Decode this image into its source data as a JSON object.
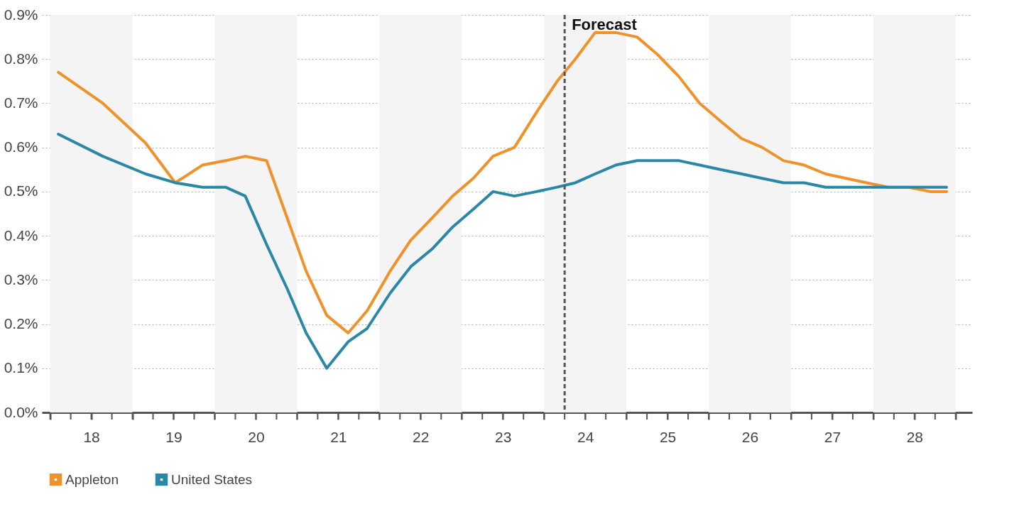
{
  "chart_data": {
    "type": "line",
    "xlim": [
      17.4,
      28.7
    ],
    "xticks": [
      {
        "value": 17.5,
        "label": null
      },
      {
        "value": 17.75,
        "label": null
      },
      18,
      {
        "value": 18.25,
        "label": null
      },
      {
        "value": 18.5,
        "label": null
      },
      {
        "value": 18.75,
        "label": null
      },
      19,
      {
        "value": 19.25,
        "label": null
      },
      {
        "value": 19.5,
        "label": null
      },
      {
        "value": 19.75,
        "label": null
      },
      20,
      {
        "value": 20.25,
        "label": null
      },
      {
        "value": 20.5,
        "label": null
      },
      {
        "value": 20.75,
        "label": null
      },
      21,
      {
        "value": 21.25,
        "label": null
      },
      {
        "value": 21.5,
        "label": null
      },
      {
        "value": 21.75,
        "label": null
      },
      22,
      {
        "value": 22.25,
        "label": null
      },
      {
        "value": 22.5,
        "label": null
      },
      {
        "value": 22.75,
        "label": null
      },
      23,
      {
        "value": 23.25,
        "label": null
      },
      {
        "value": 23.5,
        "label": null
      },
      {
        "value": 23.75,
        "label": null
      },
      24,
      {
        "value": 24.25,
        "label": null
      },
      {
        "value": 24.5,
        "label": null
      },
      {
        "value": 24.75,
        "label": null
      },
      25,
      {
        "value": 25.25,
        "label": null
      },
      {
        "value": 25.5,
        "label": null
      },
      {
        "value": 25.75,
        "label": null
      },
      26,
      {
        "value": 26.25,
        "label": null
      },
      {
        "value": 26.5,
        "label": null
      },
      {
        "value": 26.75,
        "label": null
      },
      27,
      {
        "value": 27.25,
        "label": null
      },
      {
        "value": 27.5,
        "label": null
      },
      {
        "value": 27.75,
        "label": null
      },
      28,
      {
        "value": 28.25,
        "label": null
      },
      {
        "value": 28.5,
        "label": null
      }
    ],
    "ylim": [
      0,
      0.9
    ],
    "yticks": [
      {
        "value": 0,
        "label": "0.0%"
      },
      {
        "value": 0.1,
        "label": "0.1%"
      },
      {
        "value": 0.2,
        "label": "0.2%"
      },
      {
        "value": 0.3,
        "label": "0.3%"
      },
      {
        "value": 0.4,
        "label": "0.4%"
      },
      {
        "value": 0.5,
        "label": "0.5%"
      },
      {
        "value": 0.6,
        "label": "0.6%"
      },
      {
        "value": 0.7,
        "label": "0.7%"
      },
      {
        "value": 0.8,
        "label": "0.8%"
      },
      {
        "value": 0.9,
        "label": "0.9%"
      }
    ],
    "grid": "y",
    "legend": "bottom",
    "marker": "none",
    "line_style": "solid",
    "bands": [
      {
        "axis": "x",
        "from": 17.5,
        "to": 18.5,
        "color": "#f4f4f4"
      },
      {
        "axis": "x",
        "from": 19.5,
        "to": 20.5,
        "color": "#f4f4f4"
      },
      {
        "axis": "x",
        "from": 21.5,
        "to": 22.5,
        "color": "#f4f4f4"
      },
      {
        "axis": "x",
        "from": 23.5,
        "to": 24.5,
        "color": "#f4f4f4"
      },
      {
        "axis": "x",
        "from": 25.5,
        "to": 26.5,
        "color": "#f4f4f4"
      },
      {
        "axis": "x",
        "from": 27.5,
        "to": 28.5,
        "color": "#f4f4f4"
      }
    ],
    "ref_lines": [
      {
        "axis": "x",
        "value": 23.75,
        "label": "Forecast",
        "color": "#555555",
        "line_style": "dashed"
      }
    ],
    "series": [
      {
        "name": "Appleton",
        "color": "#f0922b",
        "x": [
          17.6,
          18.14,
          18.66,
          19.02,
          19.35,
          19.63,
          19.87,
          20.13,
          20.38,
          20.61,
          20.86,
          21.12,
          21.35,
          21.63,
          21.88,
          22.14,
          22.39,
          22.64,
          22.88,
          23.14,
          23.41,
          23.66,
          23.88,
          24.12,
          24.37,
          24.63,
          24.88,
          25.14,
          25.39,
          25.64,
          25.9,
          26.15,
          26.41,
          26.66,
          26.92,
          27.17,
          27.42,
          27.68,
          27.93,
          28.19,
          28.39
        ],
        "values": [
          0.77,
          0.7,
          0.61,
          0.52,
          0.56,
          0.57,
          0.58,
          0.57,
          0.44,
          0.32,
          0.22,
          0.18,
          0.23,
          0.32,
          0.39,
          0.44,
          0.49,
          0.53,
          0.58,
          0.6,
          0.68,
          0.75,
          0.8,
          0.86,
          0.86,
          0.85,
          0.81,
          0.76,
          0.7,
          0.66,
          0.62,
          0.6,
          0.57,
          0.56,
          0.54,
          0.53,
          0.52,
          0.51,
          0.51,
          0.5,
          0.5
        ]
      },
      {
        "name": "United States",
        "color": "#2a88a6",
        "x": [
          17.6,
          18.14,
          18.66,
          19.02,
          19.35,
          19.63,
          19.87,
          20.13,
          20.38,
          20.61,
          20.86,
          21.12,
          21.35,
          21.63,
          21.88,
          22.14,
          22.39,
          22.64,
          22.88,
          23.14,
          23.41,
          23.66,
          23.88,
          24.12,
          24.37,
          24.63,
          24.88,
          25.14,
          25.39,
          25.64,
          25.9,
          26.15,
          26.41,
          26.66,
          26.92,
          27.17,
          27.42,
          27.68,
          27.93,
          28.19,
          28.39
        ],
        "values": [
          0.63,
          0.58,
          0.54,
          0.52,
          0.51,
          0.51,
          0.49,
          0.38,
          0.28,
          0.18,
          0.1,
          0.16,
          0.19,
          0.27,
          0.33,
          0.37,
          0.42,
          0.46,
          0.5,
          0.49,
          0.5,
          0.51,
          0.52,
          0.54,
          0.56,
          0.57,
          0.57,
          0.57,
          0.56,
          0.55,
          0.54,
          0.53,
          0.52,
          0.52,
          0.51,
          0.51,
          0.51,
          0.51,
          0.51,
          0.51,
          0.51
        ]
      }
    ]
  }
}
